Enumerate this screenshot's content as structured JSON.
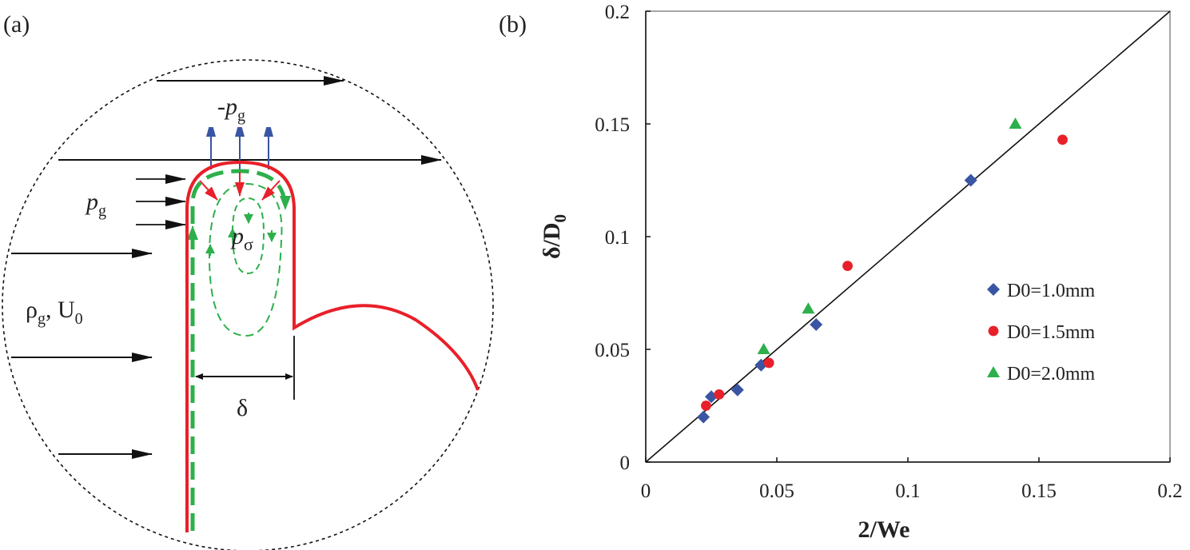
{
  "panels": {
    "a_label": "(a)",
    "b_label": "(b)"
  },
  "diagram": {
    "minus_pg": "-p",
    "minus_pg_sub": "g",
    "pg": "p",
    "pg_sub": "g",
    "psigma": "p",
    "psigma_sub": "σ",
    "rho": "ρ",
    "rho_sub": "g",
    "u": ", U",
    "u_sub": "0",
    "delta": "δ",
    "colors": {
      "interface": "#e8202a",
      "flow": "#2db04b",
      "pressure_gas": "#3a55a4",
      "arrows": "#111111"
    }
  },
  "chart_data": {
    "type": "scatter",
    "xlabel": "2/We",
    "ylabel": "δ/D",
    "ylabel_sub": "0",
    "xlim": [
      0,
      0.2
    ],
    "ylim": [
      0,
      0.2
    ],
    "xticks": [
      "0",
      "0.05",
      "0.1",
      "0.15",
      "0.2"
    ],
    "yticks": [
      "0",
      "0.05",
      "0.1",
      "0.15",
      "0.2"
    ],
    "grid": false,
    "legend_position": "right",
    "series": [
      {
        "name": "D0=1.0mm",
        "marker": "diamond",
        "color": "#3a55a4",
        "x": [
          0.022,
          0.025,
          0.035,
          0.044,
          0.065,
          0.124
        ],
        "y": [
          0.02,
          0.029,
          0.032,
          0.043,
          0.061,
          0.125
        ]
      },
      {
        "name": "D0=1.5mm",
        "marker": "circle",
        "color": "#e8202a",
        "x": [
          0.023,
          0.028,
          0.047,
          0.077,
          0.159
        ],
        "y": [
          0.025,
          0.03,
          0.044,
          0.087,
          0.143
        ]
      },
      {
        "name": "D0=2.0mm",
        "marker": "triangle",
        "color": "#2db04b",
        "x": [
          0.045,
          0.062,
          0.141
        ],
        "y": [
          0.05,
          0.068,
          0.15
        ]
      }
    ],
    "fit_line": {
      "x": [
        0,
        0.2
      ],
      "y": [
        0,
        0.2
      ]
    }
  }
}
